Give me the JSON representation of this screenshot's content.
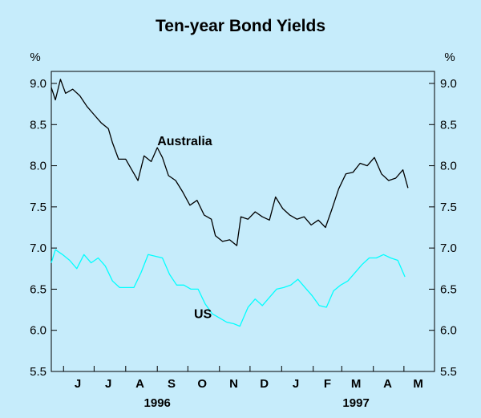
{
  "chart_data": {
    "type": "line",
    "title": "Ten-year Bond Yields",
    "unit_left": "%",
    "unit_right": "%",
    "ylim": [
      5.5,
      9.0
    ],
    "yticks": [
      "5.5",
      "6.0",
      "6.5",
      "7.0",
      "7.5",
      "8.0",
      "8.5",
      "9.0"
    ],
    "ytick_values": [
      5.5,
      6.0,
      6.5,
      7.0,
      7.5,
      8.0,
      8.5,
      9.0
    ],
    "xlim": [
      "1996-05-20",
      "1997-05-31"
    ],
    "month_ticks": [
      "1996-06-01",
      "1996-07-01",
      "1996-08-01",
      "1996-09-01",
      "1996-10-01",
      "1996-11-01",
      "1996-12-01",
      "1997-01-01",
      "1997-02-01",
      "1997-03-01",
      "1997-04-01",
      "1997-05-01",
      "1997-06-01"
    ],
    "months": [
      {
        "label": "J",
        "mid": "1996-06-15"
      },
      {
        "label": "J",
        "mid": "1996-07-15"
      },
      {
        "label": "A",
        "mid": "1996-08-15"
      },
      {
        "label": "S",
        "mid": "1996-09-15"
      },
      {
        "label": "O",
        "mid": "1996-10-15"
      },
      {
        "label": "N",
        "mid": "1996-11-15"
      },
      {
        "label": "D",
        "mid": "1996-12-15"
      },
      {
        "label": "J",
        "mid": "1997-01-15"
      },
      {
        "label": "F",
        "mid": "1997-02-15"
      },
      {
        "label": "M",
        "mid": "1997-03-15"
      },
      {
        "label": "A",
        "mid": "1997-04-15"
      },
      {
        "label": "M",
        "mid": "1997-05-15"
      }
    ],
    "years": [
      {
        "label": "1996",
        "at": "1996-09-01"
      },
      {
        "label": "1997",
        "at": "1997-03-15"
      }
    ],
    "grid": false,
    "series": [
      {
        "name": "Australia",
        "color": "#000000",
        "label_at": {
          "x": "1996-09-01",
          "y": 8.25
        },
        "points": [
          [
            "1996-05-20",
            8.95
          ],
          [
            "1996-05-24",
            8.8
          ],
          [
            "1996-05-29",
            9.05
          ],
          [
            "1996-06-03",
            8.88
          ],
          [
            "1996-06-10",
            8.93
          ],
          [
            "1996-06-17",
            8.85
          ],
          [
            "1996-06-24",
            8.72
          ],
          [
            "1996-07-01",
            8.62
          ],
          [
            "1996-07-08",
            8.52
          ],
          [
            "1996-07-15",
            8.45
          ],
          [
            "1996-07-19",
            8.28
          ],
          [
            "1996-07-25",
            8.08
          ],
          [
            "1996-08-01",
            8.08
          ],
          [
            "1996-08-07",
            7.95
          ],
          [
            "1996-08-13",
            7.82
          ],
          [
            "1996-08-19",
            8.12
          ],
          [
            "1996-08-26",
            8.05
          ],
          [
            "1996-09-01",
            8.22
          ],
          [
            "1996-09-06",
            8.1
          ],
          [
            "1996-09-12",
            7.88
          ],
          [
            "1996-09-19",
            7.82
          ],
          [
            "1996-09-26",
            7.68
          ],
          [
            "1996-10-03",
            7.52
          ],
          [
            "1996-10-10",
            7.58
          ],
          [
            "1996-10-17",
            7.4
          ],
          [
            "1996-10-24",
            7.35
          ],
          [
            "1996-10-28",
            7.15
          ],
          [
            "1996-11-04",
            7.08
          ],
          [
            "1996-11-11",
            7.1
          ],
          [
            "1996-11-18",
            7.03
          ],
          [
            "1996-11-22",
            7.38
          ],
          [
            "1996-11-29",
            7.35
          ],
          [
            "1996-12-06",
            7.44
          ],
          [
            "1996-12-13",
            7.38
          ],
          [
            "1996-12-20",
            7.34
          ],
          [
            "1996-12-26",
            7.62
          ],
          [
            "1997-01-02",
            7.48
          ],
          [
            "1997-01-09",
            7.4
          ],
          [
            "1997-01-16",
            7.35
          ],
          [
            "1997-01-23",
            7.38
          ],
          [
            "1997-01-30",
            7.28
          ],
          [
            "1997-02-06",
            7.34
          ],
          [
            "1997-02-13",
            7.25
          ],
          [
            "1997-02-19",
            7.46
          ],
          [
            "1997-02-26",
            7.72
          ],
          [
            "1997-03-05",
            7.9
          ],
          [
            "1997-03-12",
            7.92
          ],
          [
            "1997-03-19",
            8.03
          ],
          [
            "1997-03-26",
            8.0
          ],
          [
            "1997-04-02",
            8.1
          ],
          [
            "1997-04-09",
            7.9
          ],
          [
            "1997-04-16",
            7.82
          ],
          [
            "1997-04-23",
            7.85
          ],
          [
            "1997-04-30",
            7.95
          ],
          [
            "1997-05-05",
            7.73
          ]
        ]
      },
      {
        "name": "US",
        "color": "#00ffff",
        "label_at": {
          "x": "1996-10-07",
          "y": 6.15
        },
        "points": [
          [
            "1996-05-20",
            6.82
          ],
          [
            "1996-05-24",
            6.98
          ],
          [
            "1996-05-31",
            6.92
          ],
          [
            "1996-06-07",
            6.85
          ],
          [
            "1996-06-14",
            6.75
          ],
          [
            "1996-06-21",
            6.92
          ],
          [
            "1996-06-28",
            6.82
          ],
          [
            "1996-07-05",
            6.88
          ],
          [
            "1996-07-12",
            6.78
          ],
          [
            "1996-07-19",
            6.6
          ],
          [
            "1996-07-26",
            6.52
          ],
          [
            "1996-08-02",
            6.52
          ],
          [
            "1996-08-09",
            6.52
          ],
          [
            "1996-08-16",
            6.7
          ],
          [
            "1996-08-23",
            6.92
          ],
          [
            "1996-08-30",
            6.9
          ],
          [
            "1996-09-06",
            6.88
          ],
          [
            "1996-09-13",
            6.68
          ],
          [
            "1996-09-20",
            6.55
          ],
          [
            "1996-09-27",
            6.55
          ],
          [
            "1996-10-04",
            6.5
          ],
          [
            "1996-10-11",
            6.5
          ],
          [
            "1996-10-18",
            6.32
          ],
          [
            "1996-10-25",
            6.2
          ],
          [
            "1996-11-01",
            6.15
          ],
          [
            "1996-11-08",
            6.1
          ],
          [
            "1996-11-15",
            6.08
          ],
          [
            "1996-11-21",
            6.05
          ],
          [
            "1996-11-29",
            6.28
          ],
          [
            "1996-12-06",
            6.38
          ],
          [
            "1996-12-13",
            6.3
          ],
          [
            "1996-12-20",
            6.4
          ],
          [
            "1996-12-27",
            6.5
          ],
          [
            "1997-01-03",
            6.52
          ],
          [
            "1997-01-10",
            6.55
          ],
          [
            "1997-01-17",
            6.62
          ],
          [
            "1997-01-24",
            6.52
          ],
          [
            "1997-01-31",
            6.42
          ],
          [
            "1997-02-07",
            6.3
          ],
          [
            "1997-02-14",
            6.28
          ],
          [
            "1997-02-21",
            6.48
          ],
          [
            "1997-02-28",
            6.55
          ],
          [
            "1997-03-07",
            6.6
          ],
          [
            "1997-03-14",
            6.7
          ],
          [
            "1997-03-21",
            6.8
          ],
          [
            "1997-03-28",
            6.88
          ],
          [
            "1997-04-04",
            6.88
          ],
          [
            "1997-04-11",
            6.92
          ],
          [
            "1997-04-18",
            6.88
          ],
          [
            "1997-04-25",
            6.85
          ],
          [
            "1997-05-02",
            6.65
          ]
        ]
      }
    ]
  }
}
